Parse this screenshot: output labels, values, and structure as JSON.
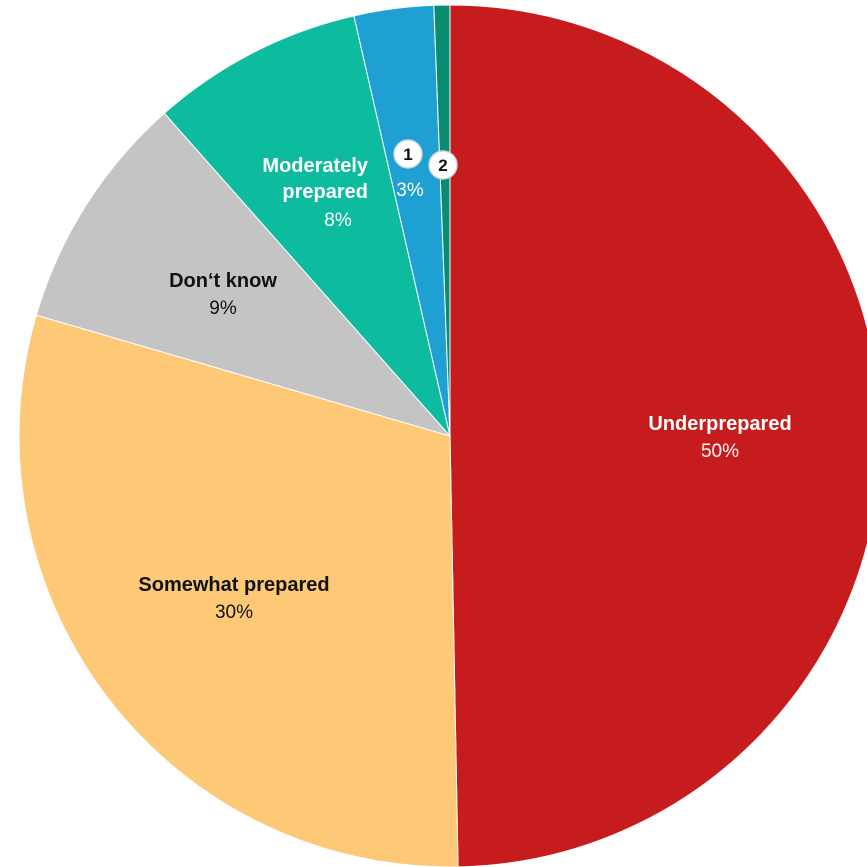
{
  "chart_data": {
    "type": "pie",
    "slices": [
      {
        "label": "Underprepared",
        "value": 50,
        "pct_text": "50%",
        "color": "#c61c1e"
      },
      {
        "label": "Somewhat prepared",
        "value": 30,
        "pct_text": "30%",
        "color": "#fdc977"
      },
      {
        "label": "Don‘t know",
        "value": 9,
        "pct_text": "9%",
        "color": "#c4c4c4"
      },
      {
        "label": "Moderately prepared",
        "value": 8,
        "pct_text": "8%",
        "color": "#0dbc9f"
      },
      {
        "label": "1",
        "value": 3,
        "pct_text": "3%",
        "color": "#1ea0d2"
      },
      {
        "label": "2",
        "value": 0.6,
        "pct_text": "",
        "color": "#0a8c70"
      }
    ]
  }
}
